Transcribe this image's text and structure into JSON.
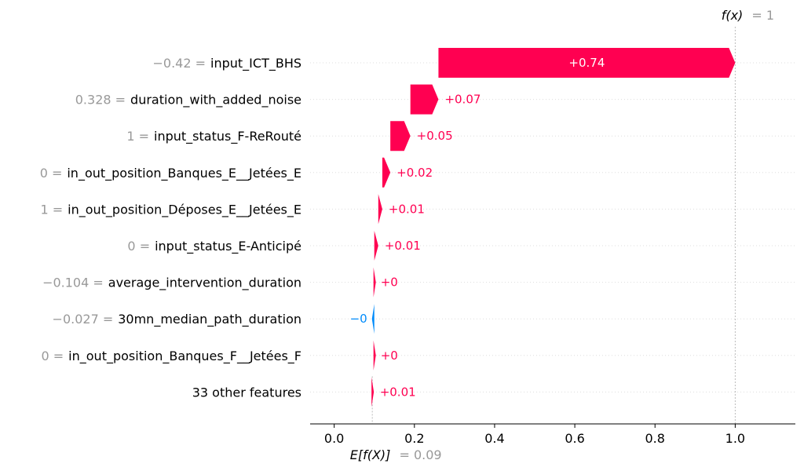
{
  "chart_data": {
    "type": "waterfall",
    "fx_label": {
      "func": "f(x)",
      "eq": "= 1"
    },
    "base_label": {
      "func": "E[f(X)]",
      "eq": "= 0.09"
    },
    "base_value": 0.095,
    "final_value": 1.0,
    "xlim": [
      -0.06,
      1.15
    ],
    "xticks": [
      {
        "value": 0.0,
        "label": "0.0"
      },
      {
        "value": 0.2,
        "label": "0.2"
      },
      {
        "value": 0.4,
        "label": "0.4"
      },
      {
        "value": 0.6,
        "label": "0.6"
      },
      {
        "value": 0.8,
        "label": "0.8"
      },
      {
        "value": 1.0,
        "label": "1.0"
      }
    ],
    "colors": {
      "positive": "#ff0051",
      "negative": "#008bfb",
      "bar_text": "#ffffff"
    },
    "features": [
      {
        "value": "−0.42 =",
        "name": "input_ICT_BHS",
        "contribution": 0.74,
        "label": "+0.74"
      },
      {
        "value": "0.328 =",
        "name": "duration_with_added_noise",
        "contribution": 0.07,
        "label": "+0.07"
      },
      {
        "value": "1 =",
        "name": "input_status_F-ReRouté",
        "contribution": 0.05,
        "label": "+0.05"
      },
      {
        "value": "0 =",
        "name": "in_out_position_Banques_E__Jetées_E",
        "contribution": 0.02,
        "label": "+0.02"
      },
      {
        "value": "1 =",
        "name": "in_out_position_Déposes_E__Jetées_E",
        "contribution": 0.01,
        "label": "+0.01"
      },
      {
        "value": "0 =",
        "name": "input_status_E-Anticipé",
        "contribution": 0.01,
        "label": "+0.01"
      },
      {
        "value": "−0.104 =",
        "name": "average_intervention_duration",
        "contribution": 0.002,
        "label": "+0"
      },
      {
        "value": "−0.027 =",
        "name": "30mn_median_path_duration",
        "contribution": -0.002,
        "label": "−0"
      },
      {
        "value": "0 =",
        "name": "in_out_position_Banques_F__Jetées_F",
        "contribution": 0.002,
        "label": "+0"
      },
      {
        "value": "",
        "name": "33 other features",
        "contribution": 0.005,
        "label": "+0.01"
      }
    ]
  }
}
